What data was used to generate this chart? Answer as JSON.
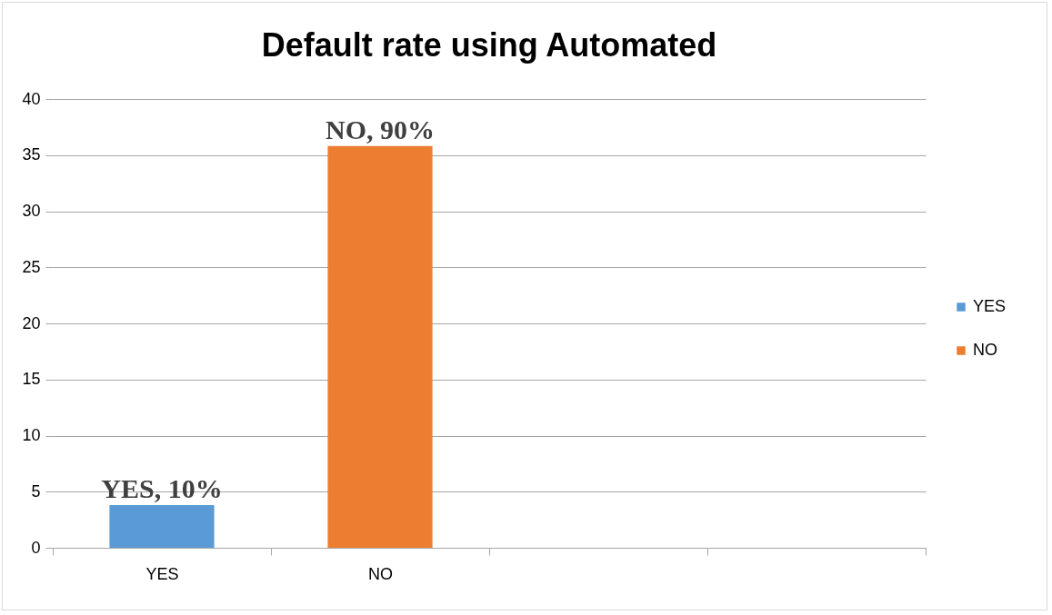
{
  "chart_data": {
    "type": "bar",
    "title": "Default rate using Automated",
    "categories": [
      "YES",
      "NO",
      null,
      null
    ],
    "series": [
      {
        "name": "YES",
        "color": "#5b9bd5",
        "values": [
          3.8,
          null,
          null,
          null
        ]
      },
      {
        "name": "NO",
        "color": "#ed7d31",
        "values": [
          null,
          35.8,
          null,
          null
        ]
      }
    ],
    "annotations": [
      {
        "text": "YES, 10%",
        "x": "YES",
        "y": 3.8
      },
      {
        "text": "NO, 90%",
        "x": "NO",
        "y": 35.8
      }
    ],
    "ylim": [
      0,
      40
    ],
    "yticks": [
      0,
      5,
      10,
      15,
      20,
      25,
      30,
      35,
      40
    ],
    "grid": "y",
    "legend": "right"
  }
}
